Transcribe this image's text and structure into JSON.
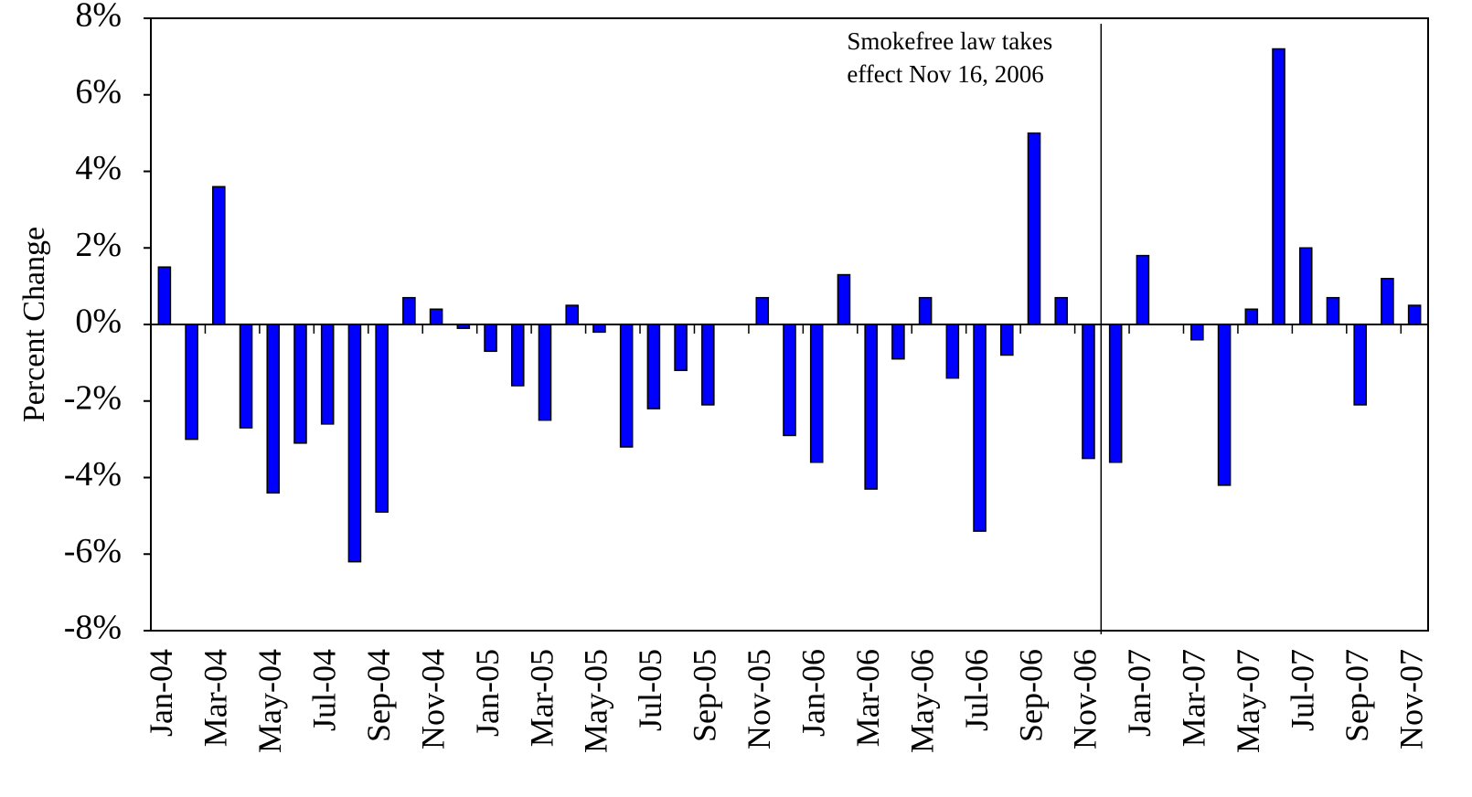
{
  "chart_data": {
    "type": "bar",
    "y_label": "Percent Change",
    "annotation": "Smokefree law takes\neffect Nov 16, 2006",
    "categories": [
      "Jan-04",
      null,
      "Mar-04",
      null,
      "May-04",
      null,
      "Jul-04",
      null,
      "Sep-04",
      null,
      "Nov-04",
      null,
      "Jan-05",
      null,
      "Mar-05",
      null,
      "May-05",
      null,
      "Jul-05",
      null,
      "Sep-05",
      null,
      "Nov-05",
      null,
      "Jan-06",
      null,
      "Mar-06",
      null,
      "May-06",
      null,
      "Jul-06",
      null,
      "Sep-06",
      null,
      "Nov-06",
      null,
      "Jan-07",
      null,
      "Mar-07",
      null,
      "May-07",
      null,
      "Jul-07",
      null,
      "Sep-07",
      null,
      "Nov-07"
    ],
    "values": [
      1.5,
      -3.0,
      3.6,
      -2.7,
      -4.4,
      -3.1,
      -2.6,
      -6.2,
      -4.9,
      0.7,
      0.4,
      -0.1,
      -0.7,
      -1.6,
      -2.5,
      0.5,
      -0.2,
      -3.2,
      -2.2,
      -1.2,
      -2.1,
      0,
      0.7,
      -2.9,
      -3.6,
      1.3,
      -4.3,
      -0.9,
      0.7,
      -1.4,
      -5.4,
      -0.8,
      5.0,
      0.7,
      -3.5,
      -3.6,
      1.8,
      0,
      -0.4,
      -4.2,
      0.4,
      7.2,
      2.0,
      0.7,
      -2.1,
      1.2,
      0.5
    ],
    "color": "#0000ff",
    "ylim": [
      -8,
      8
    ],
    "yticks": [
      {
        "value": -8,
        "label": "-8%"
      },
      {
        "value": -6,
        "label": "-6%"
      },
      {
        "value": -4,
        "label": "-4%"
      },
      {
        "value": -2,
        "label": "-2%"
      },
      {
        "value": 0,
        "label": "0%"
      },
      {
        "value": 2,
        "label": "2%"
      },
      {
        "value": 4,
        "label": "4%"
      },
      {
        "value": 6,
        "label": "6%"
      },
      {
        "value": 8,
        "label": "8%"
      }
    ],
    "grid": false
  }
}
